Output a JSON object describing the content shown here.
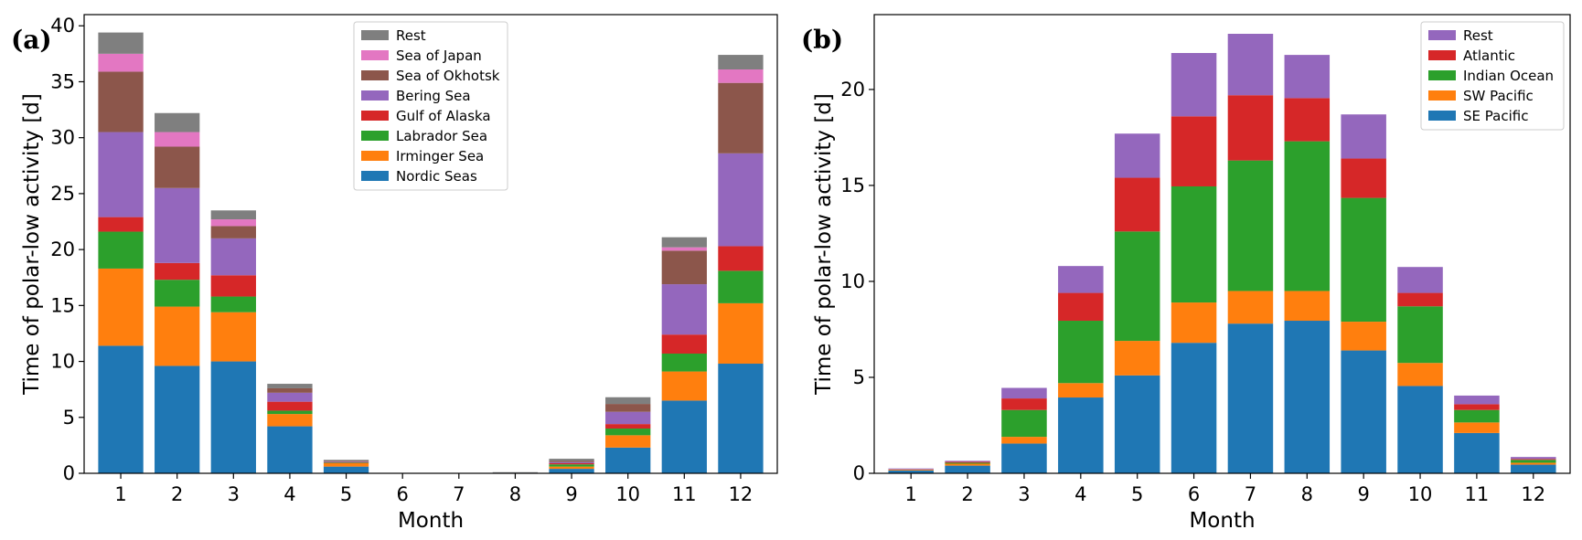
{
  "chart_data": [
    {
      "type": "bar",
      "stacked": true,
      "panel_label": "(a)",
      "xlabel": "Month",
      "ylabel": "Time of polar-low activity [d]",
      "ylim": [
        0,
        41
      ],
      "yticks": [
        0,
        5,
        10,
        15,
        20,
        25,
        30,
        35,
        40
      ],
      "legend_position": "top-center",
      "categories": [
        "1",
        "2",
        "3",
        "4",
        "5",
        "6",
        "7",
        "8",
        "9",
        "10",
        "11",
        "12"
      ],
      "series": [
        {
          "name": "Nordic Seas",
          "color": "#1f77b4",
          "values": [
            11.4,
            9.6,
            10.0,
            4.2,
            0.6,
            0.0,
            0.0,
            0.05,
            0.4,
            2.3,
            6.5,
            9.8
          ]
        },
        {
          "name": "Irminger Sea",
          "color": "#ff7f0e",
          "values": [
            6.9,
            5.3,
            4.4,
            1.1,
            0.3,
            0.0,
            0.0,
            0.0,
            0.2,
            1.1,
            2.6,
            5.4
          ]
        },
        {
          "name": "Labrador Sea",
          "color": "#2ca02c",
          "values": [
            3.3,
            2.4,
            1.4,
            0.3,
            0.05,
            0.0,
            0.0,
            0.0,
            0.2,
            0.6,
            1.6,
            2.9
          ]
        },
        {
          "name": "Gulf of Alaska",
          "color": "#d62728",
          "values": [
            1.3,
            1.5,
            1.9,
            0.8,
            0.05,
            0.0,
            0.0,
            0.0,
            0.1,
            0.4,
            1.7,
            2.2
          ]
        },
        {
          "name": "Bering Sea",
          "color": "#9467bd",
          "values": [
            7.6,
            6.7,
            3.3,
            0.8,
            0.05,
            0.0,
            0.0,
            0.0,
            0.1,
            1.1,
            4.5,
            8.3
          ]
        },
        {
          "name": "Sea of Okhotsk",
          "color": "#8c564b",
          "values": [
            5.4,
            3.7,
            1.1,
            0.4,
            0.05,
            0.0,
            0.0,
            0.0,
            0.1,
            0.7,
            3.0,
            6.3
          ]
        },
        {
          "name": "Sea of Japan",
          "color": "#e377c2",
          "values": [
            1.6,
            1.3,
            0.6,
            0.0,
            0.0,
            0.0,
            0.0,
            0.0,
            0.0,
            0.0,
            0.3,
            1.2
          ]
        },
        {
          "name": "Rest",
          "color": "#7f7f7f",
          "values": [
            1.9,
            1.7,
            0.8,
            0.4,
            0.1,
            0.0,
            0.0,
            0.05,
            0.2,
            0.6,
            0.9,
            1.3
          ]
        }
      ]
    },
    {
      "type": "bar",
      "stacked": true,
      "panel_label": "(b)",
      "xlabel": "Month",
      "ylabel": "Time of polar-low activity [d]",
      "ylim": [
        0,
        23.9
      ],
      "yticks": [
        0,
        5,
        10,
        15,
        20
      ],
      "legend_position": "top-right",
      "categories": [
        "1",
        "2",
        "3",
        "4",
        "5",
        "6",
        "7",
        "8",
        "9",
        "10",
        "11",
        "12"
      ],
      "series": [
        {
          "name": "SE Pacific",
          "color": "#1f77b4",
          "values": [
            0.15,
            0.4,
            1.55,
            3.95,
            5.1,
            6.8,
            7.8,
            7.95,
            6.4,
            4.55,
            2.1,
            0.45
          ]
        },
        {
          "name": "SW Pacific",
          "color": "#ff7f0e",
          "values": [
            0.05,
            0.1,
            0.35,
            0.75,
            1.8,
            2.1,
            1.7,
            1.55,
            1.5,
            1.2,
            0.55,
            0.1
          ]
        },
        {
          "name": "Indian Ocean",
          "color": "#2ca02c",
          "values": [
            0.0,
            0.05,
            1.4,
            3.25,
            5.7,
            6.05,
            6.8,
            7.8,
            6.45,
            2.95,
            0.65,
            0.15
          ]
        },
        {
          "name": "Atlantic",
          "color": "#d62728",
          "values": [
            0.0,
            0.05,
            0.6,
            1.45,
            2.8,
            3.65,
            3.4,
            2.25,
            2.05,
            0.7,
            0.3,
            0.05
          ]
        },
        {
          "name": "Rest",
          "color": "#9467bd",
          "values": [
            0.05,
            0.05,
            0.55,
            1.4,
            2.3,
            3.3,
            3.2,
            2.25,
            2.3,
            1.35,
            0.45,
            0.1
          ]
        }
      ]
    }
  ]
}
